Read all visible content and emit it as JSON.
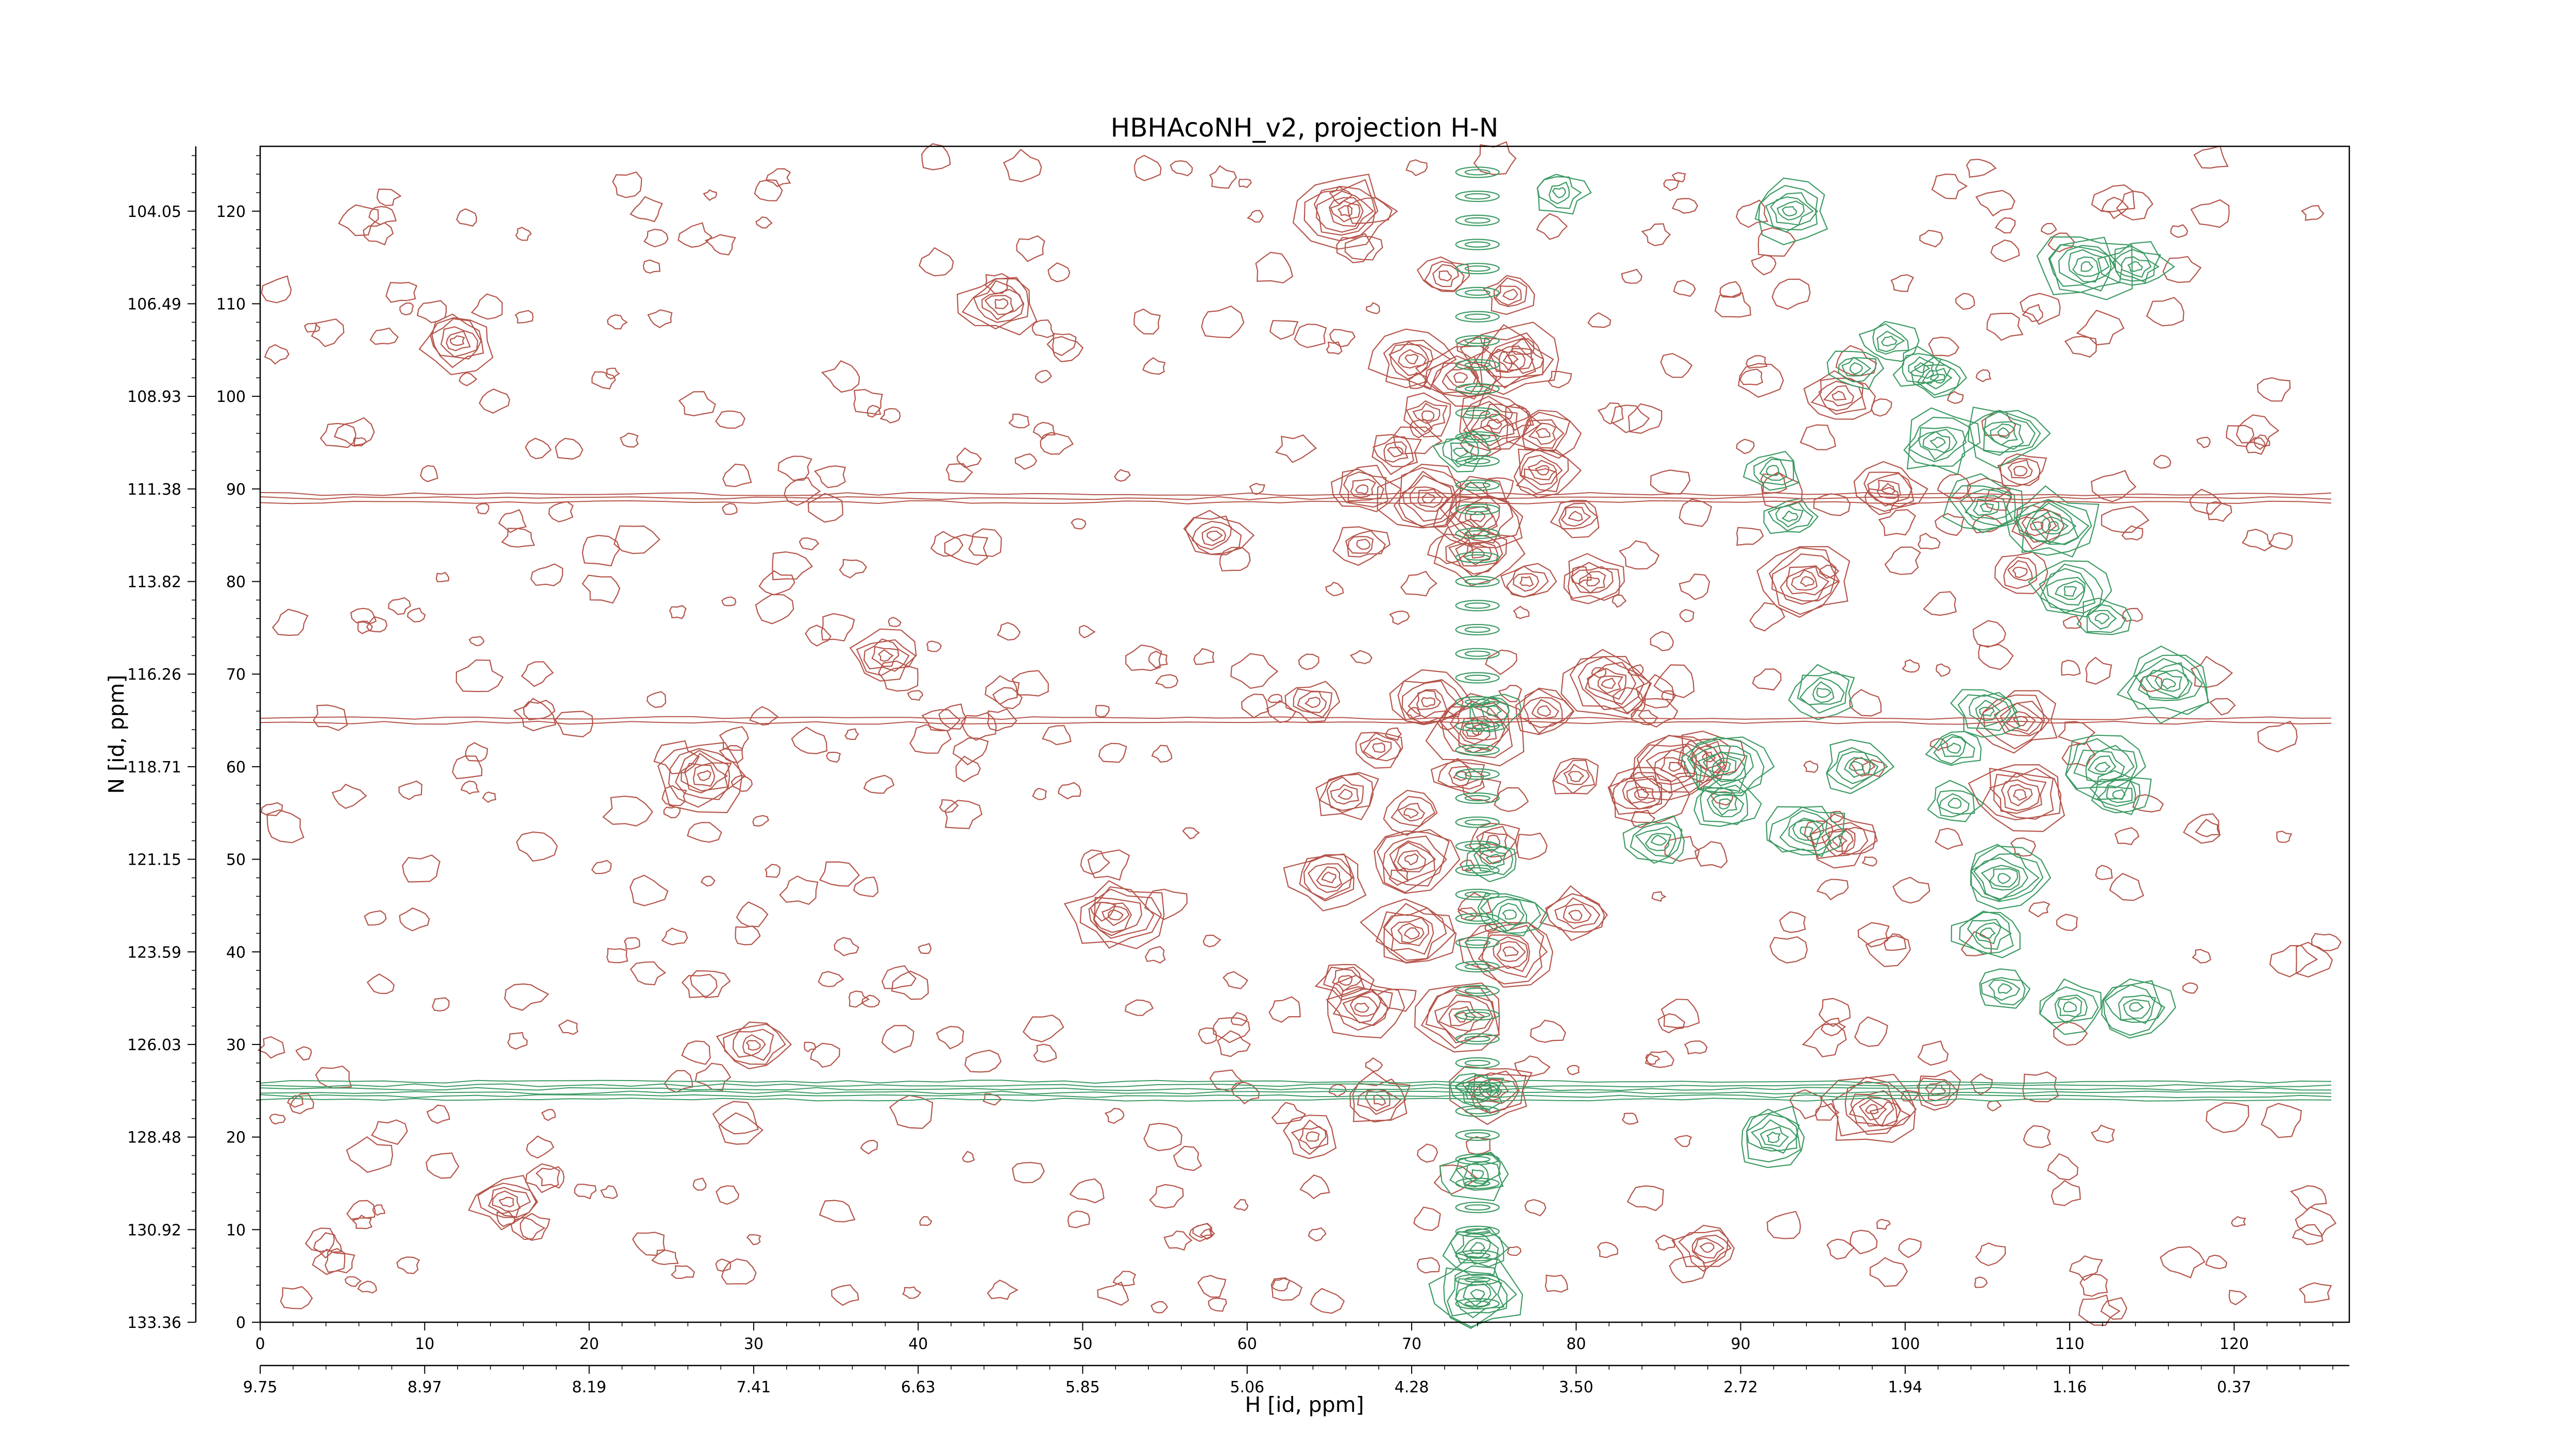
{
  "chart_data": {
    "type": "contour",
    "title": "HBHAcoNH_v2, projection H-N",
    "xlabel": "H [id, ppm]",
    "ylabel": "N [id, ppm]",
    "x_points": {
      "range": [
        0,
        127
      ],
      "ticks": [
        "0",
        "10",
        "20",
        "30",
        "40",
        "50",
        "60",
        "70",
        "80",
        "90",
        "100",
        "110",
        "120"
      ]
    },
    "y_points": {
      "range": [
        0,
        127
      ],
      "ticks": [
        "0",
        "10",
        "20",
        "30",
        "40",
        "50",
        "60",
        "70",
        "80",
        "90",
        "100",
        "110",
        "120"
      ]
    },
    "x_ppm_ticks": [
      "9.75",
      "8.97",
      "8.19",
      "7.41",
      "6.63",
      "5.85",
      "5.06",
      "4.28",
      "3.50",
      "2.72",
      "1.94",
      "1.16",
      "0.37"
    ],
    "y_ppm_ticks": [
      "133.36",
      "130.92",
      "128.48",
      "126.03",
      "123.59",
      "121.15",
      "118.71",
      "116.26",
      "113.82",
      "111.38",
      "108.93",
      "106.49",
      "104.05"
    ],
    "series": [
      {
        "color": "#b5554b",
        "peaks": [
          [
            66,
            120
          ],
          [
            72,
            113
          ],
          [
            76,
            111
          ],
          [
            70,
            104
          ],
          [
            73,
            102
          ],
          [
            76,
            104
          ],
          [
            71,
            98
          ],
          [
            75,
            97
          ],
          [
            78,
            96
          ],
          [
            69,
            94
          ],
          [
            78,
            92
          ],
          [
            67,
            90
          ],
          [
            71,
            89
          ],
          [
            74,
            87
          ],
          [
            80,
            87
          ],
          [
            67,
            84
          ],
          [
            74,
            83
          ],
          [
            77,
            80
          ],
          [
            81,
            80
          ],
          [
            64,
            67
          ],
          [
            68,
            62
          ],
          [
            71,
            67
          ],
          [
            74,
            64
          ],
          [
            78,
            66
          ],
          [
            82,
            69
          ],
          [
            86,
            60
          ],
          [
            66,
            57
          ],
          [
            70,
            55
          ],
          [
            73,
            59
          ],
          [
            80,
            59
          ],
          [
            84,
            57
          ],
          [
            88,
            61
          ],
          [
            65,
            48
          ],
          [
            70,
            50
          ],
          [
            75,
            52
          ],
          [
            66,
            37
          ],
          [
            70,
            42
          ],
          [
            76,
            40
          ],
          [
            80,
            44
          ],
          [
            67,
            34
          ],
          [
            73,
            33
          ],
          [
            68,
            24
          ],
          [
            75,
            25
          ],
          [
            64,
            20
          ],
          [
            99,
            90
          ],
          [
            96,
            100
          ],
          [
            107,
            92
          ],
          [
            108,
            86
          ],
          [
            107,
            81
          ],
          [
            94,
            80
          ],
          [
            107,
            65
          ],
          [
            107,
            57
          ],
          [
            96,
            52
          ],
          [
            98,
            23
          ],
          [
            102,
            25
          ],
          [
            27,
            59
          ],
          [
            52,
            44
          ],
          [
            30,
            30
          ],
          [
            38,
            72
          ],
          [
            15,
            13
          ],
          [
            12,
            106
          ],
          [
            45,
            110
          ],
          [
            58,
            85
          ],
          [
            88,
            8
          ]
        ]
      },
      {
        "color": "#3d9b64",
        "peaks": [
          [
            73,
            94
          ],
          [
            75,
            66
          ],
          [
            75,
            50
          ],
          [
            76,
            44
          ],
          [
            85,
            52
          ],
          [
            89,
            56
          ],
          [
            89,
            60
          ],
          [
            94,
            53
          ],
          [
            92,
            92
          ],
          [
            93,
            87
          ],
          [
            95,
            68
          ],
          [
            97,
            60
          ],
          [
            97,
            103
          ],
          [
            101,
            103
          ],
          [
            102,
            102
          ],
          [
            105,
            88
          ],
          [
            105,
            66
          ],
          [
            103,
            62
          ],
          [
            103,
            56
          ],
          [
            106,
            48
          ],
          [
            105,
            42
          ],
          [
            106,
            36
          ],
          [
            110,
            34
          ],
          [
            112,
            60
          ],
          [
            113,
            57
          ],
          [
            114,
            34
          ],
          [
            92,
            20
          ],
          [
            93,
            120
          ],
          [
            99,
            106
          ],
          [
            102,
            95
          ],
          [
            106,
            96
          ],
          [
            109,
            86
          ],
          [
            110,
            79
          ],
          [
            112,
            76
          ],
          [
            116,
            69
          ],
          [
            111,
            114
          ],
          [
            114,
            114
          ],
          [
            79,
            122
          ],
          [
            74,
            25
          ],
          [
            74,
            16
          ],
          [
            74,
            8
          ],
          [
            74,
            3
          ]
        ]
      }
    ],
    "grid": false
  }
}
